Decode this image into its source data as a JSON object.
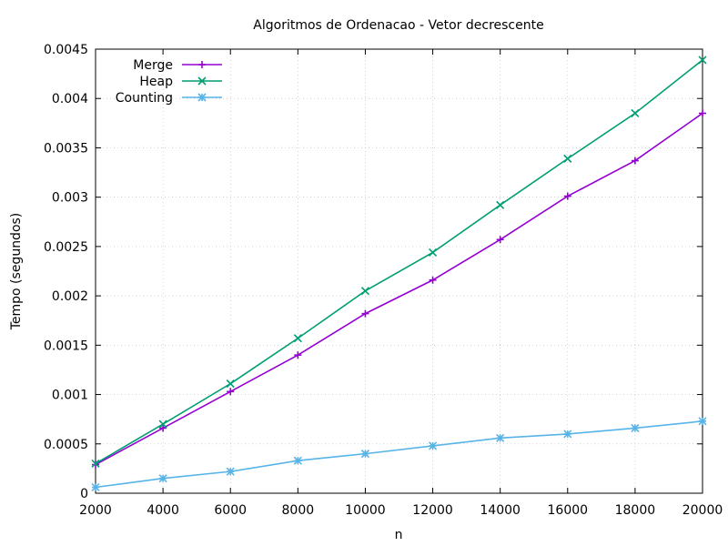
{
  "chart_data": {
    "type": "line",
    "title": "Algoritmos de Ordenacao - Vetor decrescente",
    "xlabel": "n",
    "ylabel": "Tempo (segundos)",
    "xlim": [
      2000,
      20000
    ],
    "ylim": [
      0,
      0.0045
    ],
    "x_ticks": [
      2000,
      4000,
      6000,
      8000,
      10000,
      12000,
      14000,
      16000,
      18000,
      20000
    ],
    "x_tick_labels": [
      "2000",
      "4000",
      "6000",
      "8000",
      "10000",
      "12000",
      "14000",
      "16000",
      "18000",
      "20000"
    ],
    "y_ticks": [
      0,
      0.0005,
      0.001,
      0.0015,
      0.002,
      0.0025,
      0.003,
      0.0035,
      0.004,
      0.0045
    ],
    "y_tick_labels": [
      "0",
      "0.0005",
      "0.001",
      "0.0015",
      "0.002",
      "0.0025",
      "0.003",
      "0.0035",
      "0.004",
      "0.0045"
    ],
    "grid": true,
    "legend_position": "top-left",
    "x": [
      2000,
      4000,
      6000,
      8000,
      10000,
      12000,
      14000,
      16000,
      18000,
      20000
    ],
    "series": [
      {
        "name": "Merge",
        "color": "#9400d3",
        "marker": "plus",
        "values": [
          0.00029,
          0.00066,
          0.00103,
          0.0014,
          0.00182,
          0.00216,
          0.00257,
          0.00301,
          0.00337,
          0.00385
        ]
      },
      {
        "name": "Heap",
        "color": "#009e73",
        "marker": "cross",
        "values": [
          0.0003,
          0.0007,
          0.00111,
          0.00157,
          0.00205,
          0.00244,
          0.00292,
          0.00339,
          0.00385,
          0.00439
        ]
      },
      {
        "name": "Counting",
        "color": "#56b4e9",
        "marker": "star",
        "values": [
          6e-05,
          0.00015,
          0.00022,
          0.00033,
          0.0004,
          0.00048,
          0.00056,
          0.0006,
          0.00066,
          0.00073
        ]
      }
    ]
  }
}
